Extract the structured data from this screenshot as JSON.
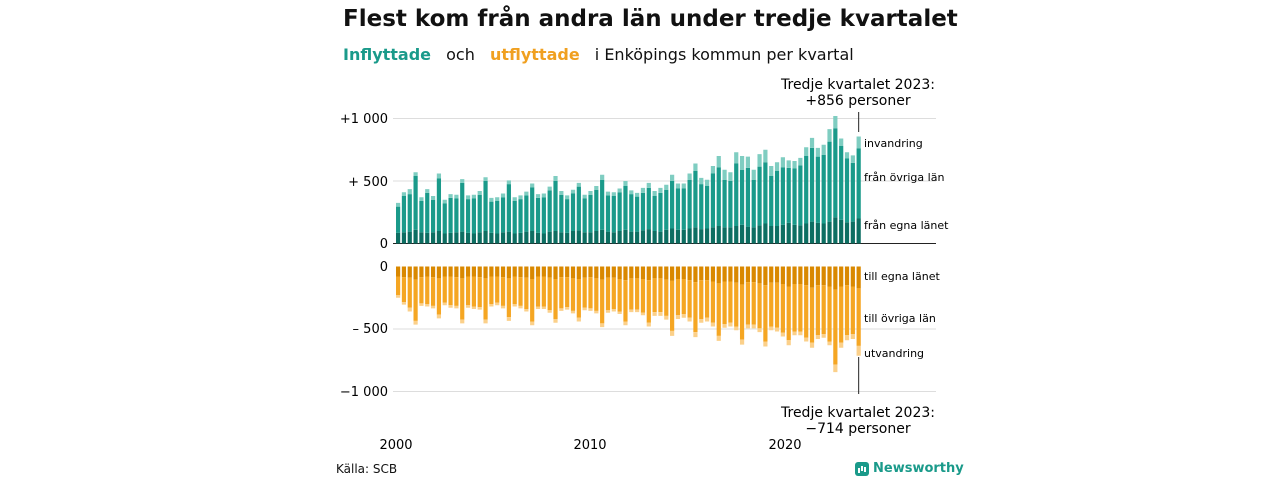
{
  "title": "Flest kom från andra län under tredje kvartalet",
  "subtitle": {
    "in_label": "Inflyttade",
    "and": "och",
    "out_label": "utflyttade",
    "rest": "i Enköpings  kommun  per  kvartal"
  },
  "source": "Källa: SCB",
  "brand": "Newsworthy",
  "colors": {
    "in_local": "#0d6e62",
    "in_other": "#1a9a8a",
    "in_abroad": "#7fcdc1",
    "out_local": "#d98800",
    "out_other": "#f5a623",
    "out_abroad": "#fbd08a",
    "grid": "#dddddd",
    "axis": "#222222"
  },
  "chart_data": {
    "type": "bar",
    "title": "Flest kom från andra län under tredje kvartalet",
    "x_start": "2000 Q1",
    "x_ticks": [
      "2000",
      "2010",
      "2020"
    ],
    "y_ticks_top": [
      "+1 000",
      "+ 500",
      "0"
    ],
    "y_ticks_bottom": [
      "0",
      "– 500",
      "−1 000"
    ],
    "ylim": [
      -1000,
      1000
    ],
    "grid": true,
    "annotation_top": {
      "line1": "Tredje kvartalet 2023:",
      "line2": "+856 personer"
    },
    "annotation_bottom": {
      "line1": "Tredje kvartalet 2023:",
      "line2": "−714 personer"
    },
    "series_labels_in": [
      "invandring",
      "från övriga län",
      "från egna länet"
    ],
    "series_labels_out": [
      "till egna länet",
      "till övriga län",
      "utvandring"
    ],
    "inflyttade": {
      "fran_egna_lanet": [
        85,
        90,
        95,
        110,
        90,
        85,
        90,
        100,
        80,
        85,
        90,
        95,
        85,
        80,
        90,
        100,
        85,
        80,
        90,
        95,
        80,
        85,
        95,
        100,
        85,
        80,
        95,
        100,
        90,
        85,
        100,
        105,
        90,
        90,
        100,
        110,
        95,
        90,
        100,
        110,
        95,
        95,
        105,
        115,
        100,
        95,
        110,
        120,
        110,
        110,
        120,
        130,
        115,
        120,
        130,
        140,
        130,
        130,
        140,
        150,
        135,
        130,
        145,
        160,
        140,
        140,
        150,
        165,
        150,
        145,
        160,
        175,
        165,
        160,
        175,
        210,
        190,
        170,
        175,
        200
      ],
      "fran_ovriga_lan": [
        210,
        290,
        300,
        430,
        250,
        320,
        260,
        420,
        240,
        280,
        270,
        390,
        270,
        280,
        300,
        400,
        250,
        260,
        280,
        380,
        260,
        270,
        290,
        350,
        280,
        290,
        330,
        400,
        300,
        270,
        300,
        350,
        270,
        300,
        330,
        400,
        290,
        290,
        310,
        350,
        300,
        280,
        300,
        330,
        280,
        310,
        320,
        380,
        330,
        330,
        390,
        450,
        360,
        340,
        430,
        470,
        380,
        370,
        500,
        440,
        470,
        380,
        470,
        490,
        400,
        440,
        460,
        440,
        450,
        480,
        540,
        590,
        530,
        550,
        640,
        710,
        590,
        510,
        470,
        560
      ],
      "invandring": [
        30,
        30,
        40,
        30,
        30,
        30,
        30,
        40,
        30,
        30,
        30,
        30,
        30,
        30,
        30,
        30,
        30,
        30,
        30,
        30,
        30,
        30,
        30,
        30,
        30,
        30,
        30,
        40,
        30,
        30,
        30,
        30,
        30,
        30,
        30,
        40,
        30,
        30,
        30,
        40,
        30,
        30,
        40,
        40,
        40,
        40,
        40,
        50,
        40,
        40,
        50,
        60,
        50,
        50,
        60,
        90,
        80,
        70,
        90,
        110,
        90,
        80,
        100,
        100,
        80,
        70,
        80,
        60,
        60,
        60,
        70,
        80,
        70,
        80,
        100,
        100,
        60,
        50,
        60,
        96
      ]
    },
    "utflyttade": {
      "till_egna_lanet": [
        80,
        85,
        90,
        105,
        85,
        80,
        85,
        95,
        80,
        80,
        85,
        95,
        80,
        80,
        85,
        95,
        80,
        80,
        85,
        95,
        80,
        85,
        90,
        100,
        80,
        80,
        90,
        100,
        85,
        85,
        95,
        100,
        90,
        85,
        95,
        105,
        90,
        90,
        100,
        110,
        95,
        95,
        100,
        110,
        95,
        95,
        105,
        115,
        100,
        100,
        110,
        125,
        110,
        110,
        120,
        135,
        120,
        120,
        130,
        145,
        125,
        125,
        135,
        150,
        130,
        130,
        140,
        160,
        140,
        140,
        150,
        170,
        150,
        150,
        160,
        185,
        160,
        150,
        160,
        175
      ],
      "till_ovriga_lan": [
        150,
        200,
        240,
        330,
        210,
        220,
        230,
        290,
        210,
        230,
        230,
        330,
        230,
        240,
        240,
        330,
        220,
        210,
        230,
        310,
        220,
        230,
        250,
        340,
        240,
        240,
        260,
        320,
        250,
        240,
        260,
        310,
        240,
        250,
        260,
        350,
        260,
        250,
        260,
        330,
        250,
        250,
        270,
        340,
        270,
        270,
        290,
        400,
        290,
        280,
        300,
        400,
        310,
        300,
        330,
        420,
        340,
        330,
        350,
        440,
        340,
        340,
        360,
        450,
        350,
        360,
        390,
        430,
        380,
        380,
        420,
        440,
        400,
        390,
        440,
        600,
        450,
        400,
        380,
        460
      ],
      "utvandring": [
        20,
        20,
        30,
        30,
        20,
        20,
        20,
        30,
        20,
        20,
        20,
        30,
        20,
        20,
        20,
        30,
        20,
        20,
        20,
        30,
        20,
        20,
        20,
        30,
        20,
        20,
        20,
        30,
        20,
        20,
        20,
        30,
        20,
        20,
        20,
        30,
        20,
        20,
        20,
        30,
        20,
        20,
        20,
        30,
        30,
        30,
        30,
        40,
        30,
        30,
        30,
        40,
        30,
        30,
        30,
        40,
        30,
        30,
        30,
        40,
        30,
        30,
        30,
        40,
        30,
        30,
        30,
        40,
        30,
        30,
        30,
        40,
        30,
        30,
        30,
        60,
        40,
        40,
        40,
        79
      ]
    }
  }
}
